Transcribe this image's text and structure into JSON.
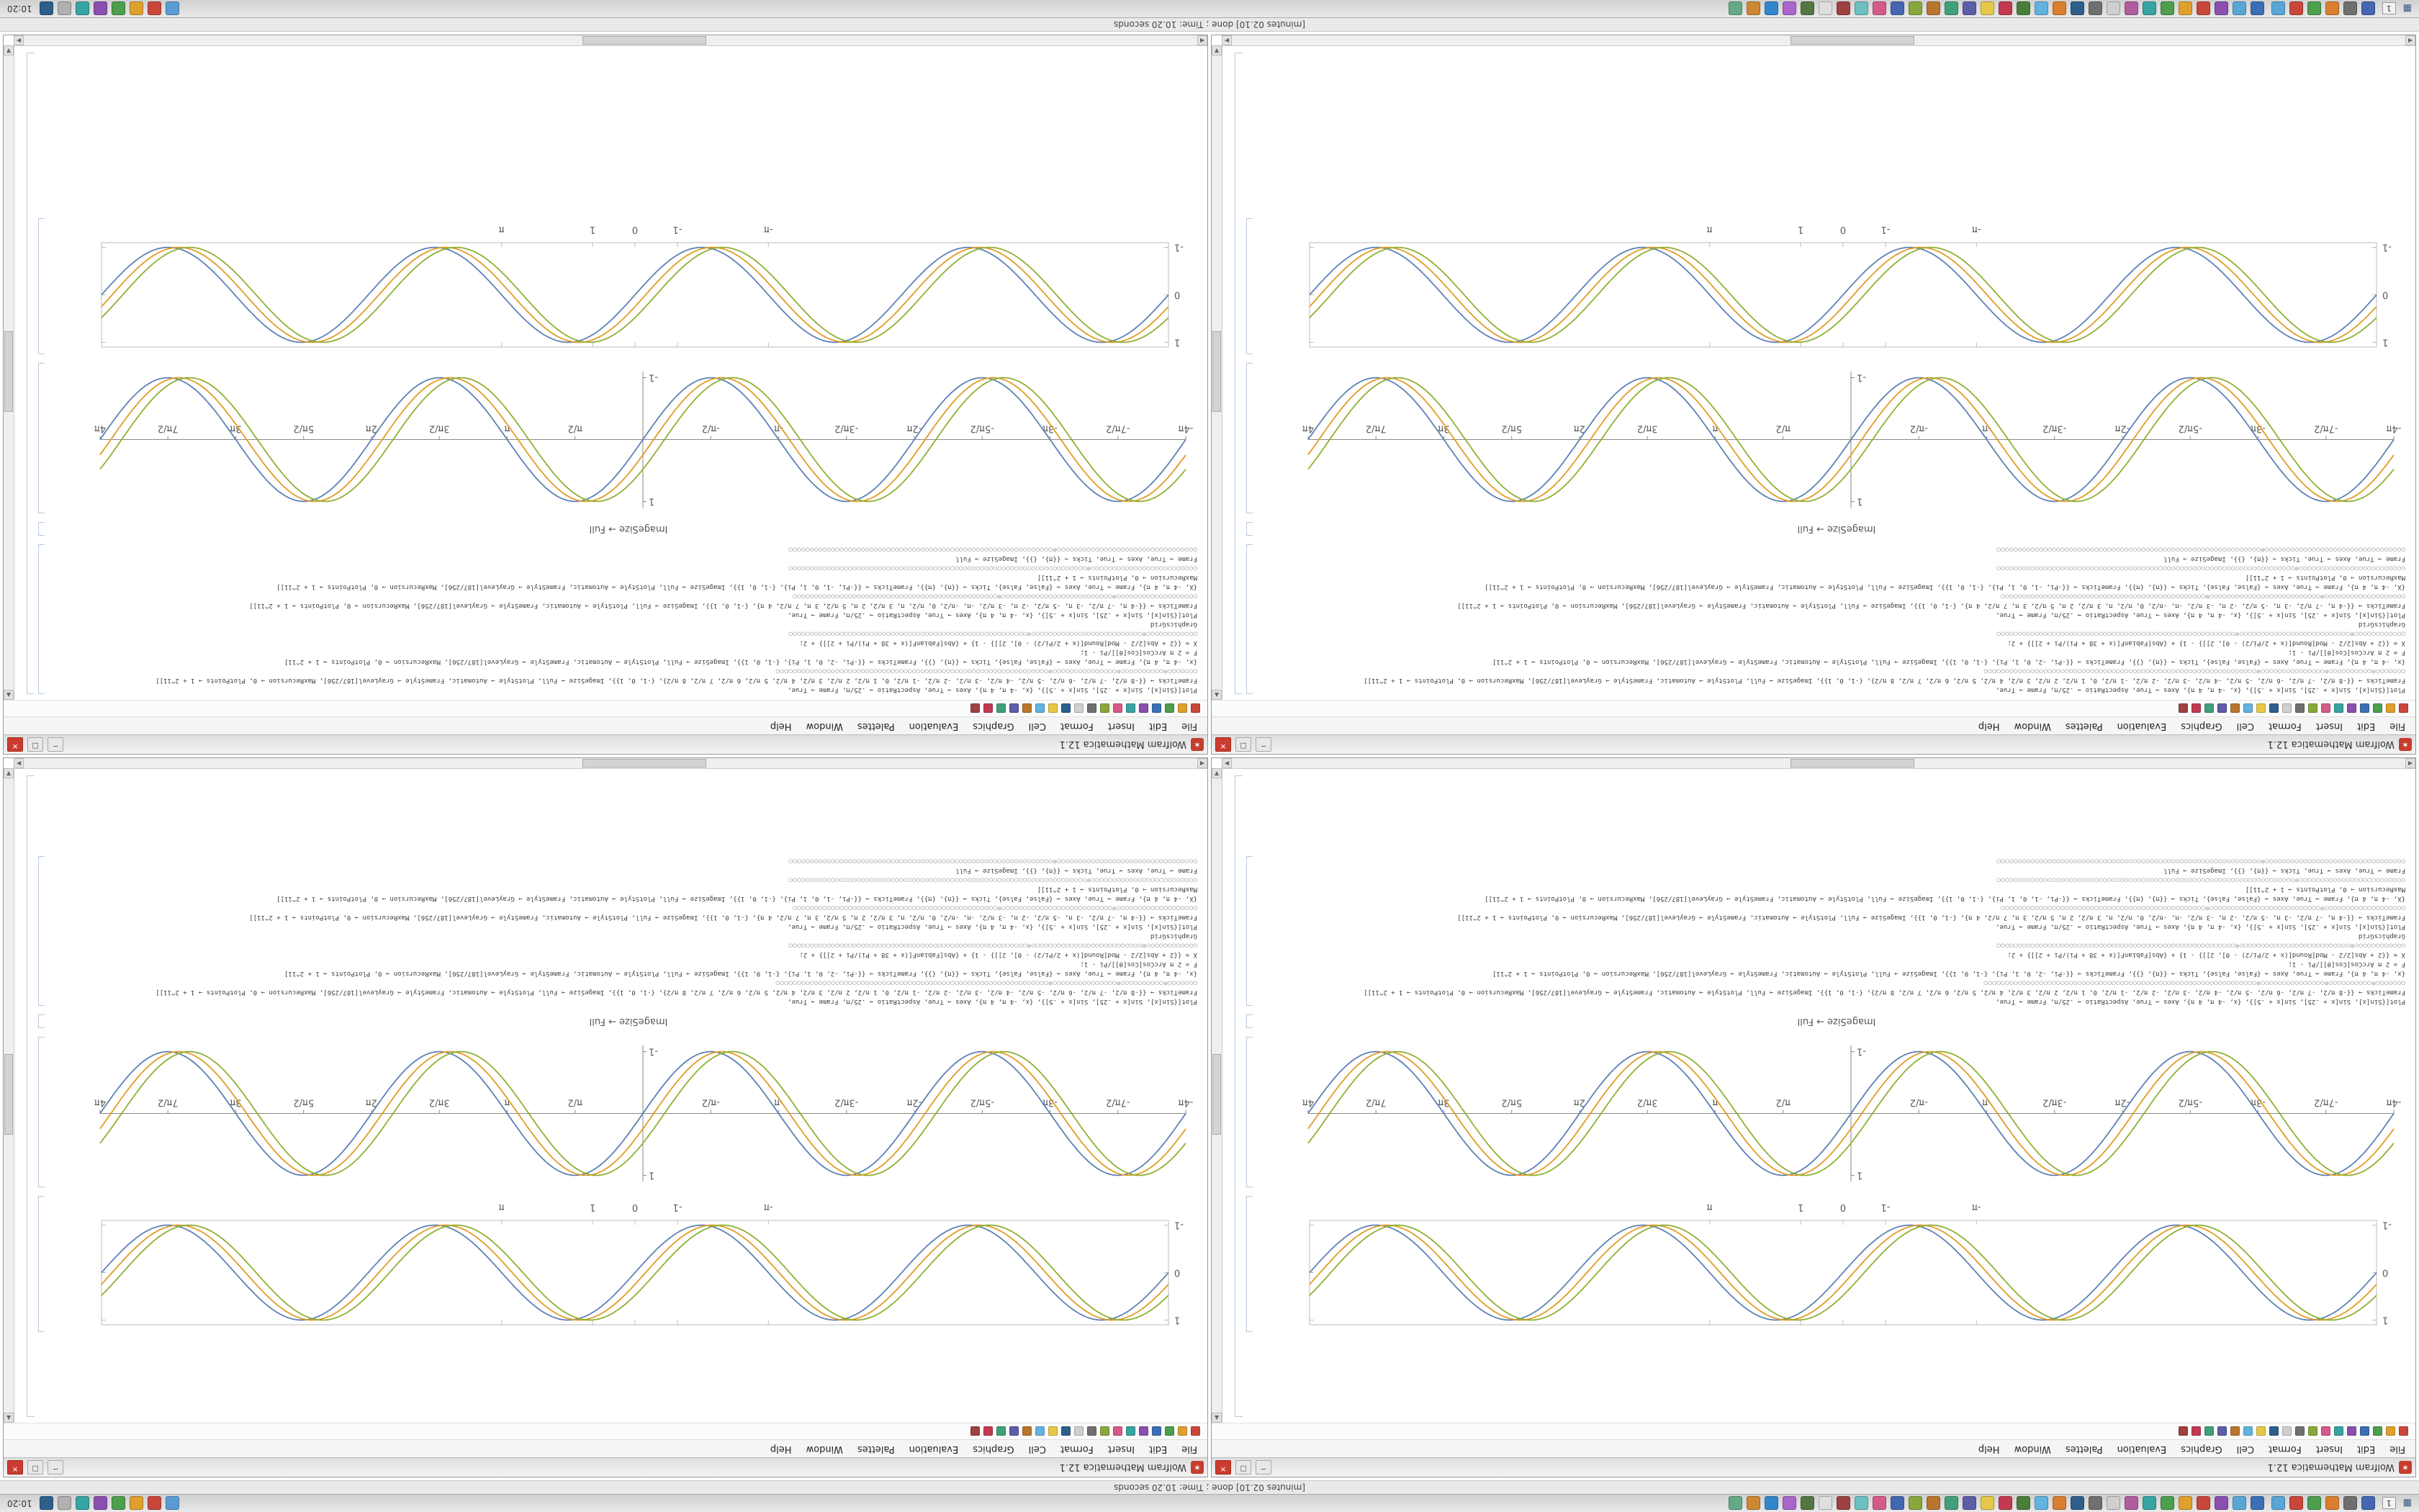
{
  "desktop": {
    "top_status_text": "[minutes 02.10]   done ;  Time: 10.20 seconds",
    "bottom_status_text": "[minutes 02.10]   done ;  Time: 10.20 seconds",
    "clock": "10:20",
    "workspace_label": "1",
    "start_glyph": "▦",
    "left_icon_colors": [
      "#4566b0",
      "#6f6f6f",
      "#d97f2f",
      "#4d9e4d",
      "#c8473a",
      "#58a6d6"
    ],
    "taskbar_icon_colors": [
      "#3a6fb5",
      "#58a6d6",
      "#8b4fb0",
      "#c8473a",
      "#e0a02e",
      "#4d9e4d",
      "#38a3a3",
      "#b05c9e",
      "#cfcfcf",
      "#6f6f6f",
      "#2d5f8a",
      "#d97f2f",
      "#62b3df",
      "#4a7f3b",
      "#c23a50",
      "#e7c747",
      "#5d5da8",
      "#41a079",
      "#b8752e",
      "#89a73b",
      "#4566b0",
      "#d45b89",
      "#6ec0c0",
      "#9d4141",
      "#dedede",
      "#547643",
      "#a965cc",
      "#3287cc",
      "#cc8732",
      "#65a987"
    ],
    "tray_icon_colors": [
      "#5a9bd4",
      "#c8473a",
      "#e0a02e",
      "#4d9e4d",
      "#8b4fb0",
      "#38a3a3",
      "#b0b0b0",
      "#2d5f8a"
    ]
  },
  "window": {
    "title": "Wolfram Mathematica 12.1",
    "app_icon_glyph": "✶",
    "buttons": {
      "min": "─",
      "max": "□",
      "close": "✕"
    },
    "menu_items": [
      "File",
      "Edit",
      "Insert",
      "Format",
      "Cell",
      "Graphics",
      "Evaluation",
      "Palettes",
      "Window",
      "Help"
    ],
    "toolbar_dot_colors": [
      "#c8473a",
      "#e0a02e",
      "#4d9e4d",
      "#3a6fb5",
      "#8b4fb0",
      "#38a3a3",
      "#d45b89",
      "#89a73b",
      "#6f6f6f",
      "#cfcfcf",
      "#2d5f8a",
      "#e7c747",
      "#62b3df",
      "#b8752e",
      "#5d5da8",
      "#41a079",
      "#c23a50",
      "#9d4141"
    ],
    "scrollbar": {
      "up": "▲",
      "down": "▼",
      "left": "◀",
      "right": "▶"
    }
  },
  "notebook": {
    "caption": "ImageSize → Full",
    "code_lines": [
      "Plot[{Sin[x], Sin[x + .25], Sin[x + .5]}, {x, -4 π, 4 π}, Axes → True, AspectRatio → .25/π, Frame → True,",
      "FrameTicks → {{-8 π/2, -7 π/2, -6 π/2, -5 π/2, -4 π/2, -3 π/2, -2 π/2, -1 π/2, 0, 1 π/2, 2 π/2, 3 π/2, 4 π/2, 5 π/2, 6 π/2, 7 π/2, 8 π/2}, {-1, 0, 1}}, ImageSize → Full, PlotStyle → Automatic, FrameStyle → GrayLevel[187/256], MaxRecursion → 0, PlotPoints → 1 + 2^11]]",
      "○○○○○○○⊙○○○○○○○○○○⊙○○○○○○○○○○○○○○○⊙○○○○○○○○○○○○○○○○○○○○○○○○○○○○○○○○○○○○○○○○○○○○○○○○○○○○○○○○○○○○○○○○",
      "{x, -4 π, 4 π}, Frame → True, Axes → {False, False}, Ticks → {{π}, {}}, FrameTicks → {{-Pi, -2, 0, 1, Pi}, {-1, 0, 1}}, ImageSize → Full, PlotStyle → Automatic, FrameStyle → GrayLevel[187/256], MaxRecursion → 0, PlotPoints → 1 + 2^11]",
      "F = 2 π ArcCos[Cos[θ]]/Pi - 1;",
      "X = {{2 + Abs[2/2 - Mod[Round[(x + 2/Pi/2) - 0], 2]]} - 1} + {Abs[FabianF[(x + 38 + Pi)/Pi + 2]]} + 2;",
      "○○○○○○○○○○○○⊙○○○○○○○○○○○○○○○○○○○○○○○○○○⊙○○○○○○○○○○○○○○○○○○○○○○○○○○○○○○○○○○○○○○○○○○○○○○○○○○○○○○○○",
      "GraphicsGrid",
      "Plot[{Sin[x], Sin[x + .25], Sin[x + .5]}, {x, -4 π, 4 π}, Axes → True, AspectRatio → .25/π, Frame → True,",
      "FrameTicks → {{-4 π, -7 π/2, -3 π, -5 π/2, -2 π, -3 π/2, -π, -π/2, 0, π/2, π, 3 π/2, 2 π, 5 π/2, 3 π, 7 π/2, 4 π}, {-1, 0, 1}}, ImageSize → Full, PlotStyle → Automatic, FrameStyle → GrayLevel[187/256], MaxRecursion → 0, PlotPoints → 1 + 2^11]]",
      "○○○○○○○○○○○○○○○○○○○⊙○○○○○○○○○○○○○○○○○○○○○○○○○○⊙○○○○○○○○○○○○○○○○○○○○○○○○○○○○○○○○○○○○○○○○○○○○○○○○",
      "{X, -4 π, 4 π}, Frame → True, Axes → {False, False}, Ticks → {{π}, {π}}, FrameTicks → {{-Pi, -1, 0, 1, Pi}, {-1, 0, 1}}, ImageSize → Full, PlotStyle → Automatic, FrameStyle → GrayLevel[187/256], MaxRecursion → 0, PlotPoints → 1 + 2^11]]",
      "MaxRecursion → 0, PlotPoints → 1 + 2^11]]",
      "○○○○○○○○○○○○○○○○○○○○○○○○○⊙○○○○○○○○○○○○○○○○○○○○○○○○○○○○○○○○○○○○○○○○○○○○○○○○○○○○○○○○○○○○○○○○○○○○○○",
      "Frame → True, Axes → True, Ticks → {{π}, {}}, ImageSize → Full",
      "○○○○○○○○○○○○○○○○○○○○○○○○○○○○○○○○○⊙○○○○○○○○○○○○○○○○○○○○○○○○○○○○○○○○○○○○○○○○○○○○○○○○○○○○○○○○○○○○○○"
    ]
  },
  "chart_data": [
    {
      "id": "framed-sine",
      "type": "line",
      "title": "",
      "xlabel": "",
      "ylabel": "",
      "frame": true,
      "axes": false,
      "grid": false,
      "legend": "none",
      "frame_color": "#bbbbbb",
      "x_range": [
        -12.566,
        12.566
      ],
      "y_range": [
        -1.1,
        1.1
      ],
      "function": "sin(x + phase)",
      "series": [
        {
          "name": "Sin[x]",
          "phase": 0,
          "color": "#5e81b5"
        },
        {
          "name": "Sin[x + .25]",
          "phase": 0.25,
          "color": "#e19c24"
        },
        {
          "name": "Sin[x + .5]",
          "phase": 0.5,
          "color": "#8fb032"
        }
      ],
      "x_ticks": [
        {
          "v": -3.1416,
          "label": "-π"
        },
        {
          "v": -1,
          "label": "-1"
        },
        {
          "v": 0,
          "label": "0"
        },
        {
          "v": 1,
          "label": "1"
        },
        {
          "v": 3.1416,
          "label": "π"
        }
      ],
      "y_ticks": [
        {
          "v": -1,
          "label": "-1"
        },
        {
          "v": 0,
          "label": "0"
        },
        {
          "v": 1,
          "label": "1"
        }
      ]
    },
    {
      "id": "axes-sine",
      "type": "line",
      "title": "",
      "xlabel": "",
      "ylabel": "",
      "frame": false,
      "axes": true,
      "grid": false,
      "legend": "none",
      "frame_color": "#8a8a8a",
      "x_range": [
        -12.566,
        12.566
      ],
      "y_range": [
        -1.1,
        1.1
      ],
      "function": "sin(x + phase)",
      "series": [
        {
          "name": "Sin[x]",
          "phase": 0,
          "color": "#5e81b5"
        },
        {
          "name": "Sin[x + .25]",
          "phase": 0.25,
          "color": "#e19c24"
        },
        {
          "name": "Sin[x + .5]",
          "phase": 0.5,
          "color": "#8fb032"
        }
      ],
      "x_ticks": [
        {
          "v": -12.566,
          "label": "-4π"
        },
        {
          "v": -10.996,
          "label": "-7π/2"
        },
        {
          "v": -9.4248,
          "label": "-3π"
        },
        {
          "v": -7.854,
          "label": "-5π/2"
        },
        {
          "v": -6.2832,
          "label": "-2π"
        },
        {
          "v": -4.7124,
          "label": "-3π/2"
        },
        {
          "v": -3.1416,
          "label": "-π"
        },
        {
          "v": -1.5708,
          "label": "-π/2"
        },
        {
          "v": 1.5708,
          "label": "π/2"
        },
        {
          "v": 3.1416,
          "label": "π"
        },
        {
          "v": 4.7124,
          "label": "3π/2"
        },
        {
          "v": 6.2832,
          "label": "2π"
        },
        {
          "v": 7.854,
          "label": "5π/2"
        },
        {
          "v": 9.4248,
          "label": "3π"
        },
        {
          "v": 10.996,
          "label": "7π/2"
        },
        {
          "v": 12.566,
          "label": "4π"
        }
      ],
      "y_ticks": [
        {
          "v": -1,
          "label": "-1"
        },
        {
          "v": 1,
          "label": "1"
        }
      ]
    }
  ]
}
